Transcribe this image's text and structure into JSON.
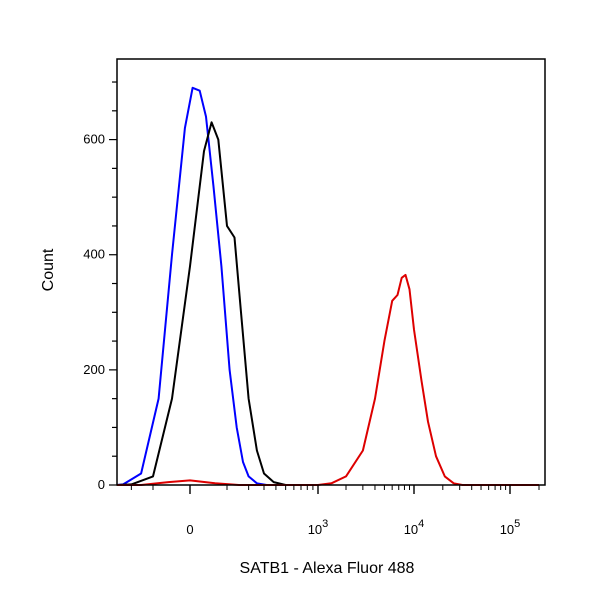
{
  "chart_data": {
    "type": "line",
    "title": "",
    "xlabel": "SATB1 - Alexa Fluor 488",
    "ylabel": "Count",
    "x_scale": "biexponential",
    "ylim": [
      0,
      740
    ],
    "y_ticks": [
      {
        "value": 0,
        "label": "0"
      },
      {
        "value": 200,
        "label": "200"
      },
      {
        "value": 400,
        "label": "400"
      },
      {
        "value": 600,
        "label": "600"
      }
    ],
    "x_ticks": [
      {
        "value": 0,
        "base": "0",
        "exp": ""
      },
      {
        "value": 1000,
        "base": "10",
        "exp": "3"
      },
      {
        "value": 10000,
        "base": "10",
        "exp": "4"
      },
      {
        "value": 100000,
        "base": "10",
        "exp": "5"
      }
    ],
    "grid": false,
    "legend": "none",
    "series": [
      {
        "color": "#0000ff",
        "points": [
          [
            -350,
            0
          ],
          [
            -250,
            1
          ],
          [
            -150,
            20
          ],
          [
            -80,
            150
          ],
          [
            -40,
            400
          ],
          [
            -10,
            620
          ],
          [
            5,
            690
          ],
          [
            20,
            685
          ],
          [
            35,
            640
          ],
          [
            55,
            520
          ],
          [
            80,
            380
          ],
          [
            110,
            200
          ],
          [
            140,
            100
          ],
          [
            170,
            40
          ],
          [
            200,
            15
          ],
          [
            250,
            3
          ],
          [
            320,
            0
          ]
        ]
      },
      {
        "color": "#000000",
        "points": [
          [
            -350,
            0
          ],
          [
            -200,
            1
          ],
          [
            -100,
            15
          ],
          [
            -40,
            150
          ],
          [
            0,
            380
          ],
          [
            30,
            580
          ],
          [
            50,
            630
          ],
          [
            70,
            600
          ],
          [
            100,
            450
          ],
          [
            130,
            430
          ],
          [
            160,
            300
          ],
          [
            200,
            150
          ],
          [
            250,
            60
          ],
          [
            300,
            20
          ],
          [
            380,
            5
          ],
          [
            500,
            0
          ]
        ]
      },
      {
        "color": "#dd0000",
        "points": [
          [
            -600,
            0
          ],
          [
            -150,
            0
          ],
          [
            -50,
            5
          ],
          [
            0,
            8
          ],
          [
            60,
            3
          ],
          [
            150,
            0
          ],
          [
            1000,
            0
          ],
          [
            1400,
            3
          ],
          [
            2000,
            15
          ],
          [
            3000,
            60
          ],
          [
            4000,
            150
          ],
          [
            5000,
            250
          ],
          [
            6000,
            320
          ],
          [
            6800,
            330
          ],
          [
            7500,
            360
          ],
          [
            8200,
            365
          ],
          [
            9000,
            340
          ],
          [
            10000,
            270
          ],
          [
            12000,
            180
          ],
          [
            14000,
            110
          ],
          [
            17000,
            50
          ],
          [
            21000,
            15
          ],
          [
            26000,
            3
          ],
          [
            32000,
            0
          ],
          [
            200000,
            0
          ]
        ]
      }
    ]
  }
}
